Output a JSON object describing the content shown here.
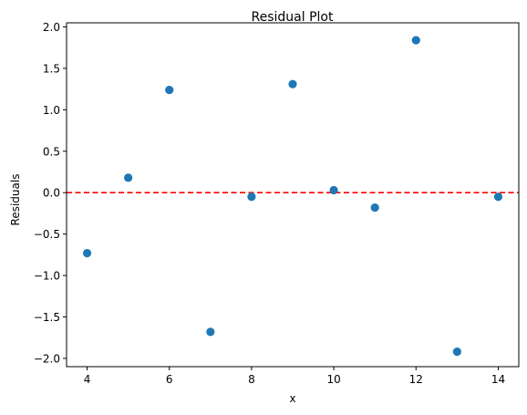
{
  "chart_data": {
    "type": "scatter",
    "title": "Residual Plot",
    "xlabel": "x",
    "ylabel": "Residuals",
    "xlim": [
      3.5,
      14.5
    ],
    "ylim": [
      -2.1,
      2.05
    ],
    "x_ticks": [
      4,
      6,
      8,
      10,
      12,
      14
    ],
    "x_tick_labels": [
      "4",
      "6",
      "8",
      "10",
      "12",
      "14"
    ],
    "y_ticks": [
      -2.0,
      -1.5,
      -1.0,
      -0.5,
      0.0,
      0.5,
      1.0,
      1.5,
      2.0
    ],
    "y_tick_labels": [
      "−2.0",
      "−1.5",
      "−1.0",
      "−0.5",
      "0.0",
      "0.5",
      "1.0",
      "1.5",
      "2.0"
    ],
    "grid": false,
    "reference_line": {
      "y": 0,
      "color": "#ff0000",
      "style": "dashed"
    },
    "point_color": "#1f77b4",
    "points": [
      {
        "x": 4,
        "y": -0.73
      },
      {
        "x": 5,
        "y": 0.18
      },
      {
        "x": 6,
        "y": 1.24
      },
      {
        "x": 7,
        "y": -1.68
      },
      {
        "x": 8,
        "y": -0.05
      },
      {
        "x": 9,
        "y": 1.31
      },
      {
        "x": 10,
        "y": 0.03
      },
      {
        "x": 11,
        "y": -0.18
      },
      {
        "x": 12,
        "y": 1.84
      },
      {
        "x": 13,
        "y": -1.92
      },
      {
        "x": 14,
        "y": -0.05
      }
    ]
  }
}
